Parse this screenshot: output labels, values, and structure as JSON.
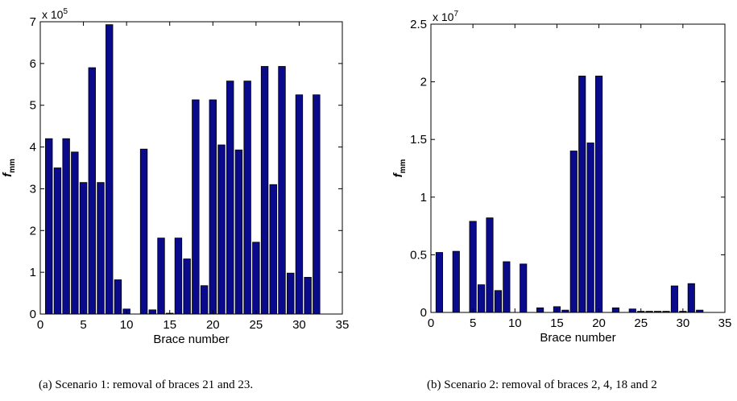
{
  "chart_data": [
    {
      "type": "bar",
      "caption": "(a) Scenario 1: removal of braces 21 and 23.",
      "xlabel": "Brace number",
      "ylabel_main": "f",
      "ylabel_sub": "mm",
      "exponent_base": "x 10",
      "exponent_power": "5",
      "xlim": [
        0,
        35
      ],
      "ylim": [
        0,
        7
      ],
      "xticks": [
        0,
        5,
        10,
        15,
        20,
        25,
        30,
        35
      ],
      "yticks": [
        0,
        1,
        2,
        3,
        4,
        5,
        6,
        7
      ],
      "x": [
        1,
        2,
        3,
        4,
        5,
        6,
        7,
        8,
        9,
        10,
        11,
        12,
        13,
        14,
        15,
        16,
        17,
        18,
        19,
        20,
        21,
        22,
        23,
        24,
        25,
        26,
        27,
        28,
        29,
        30,
        31,
        32
      ],
      "values": [
        4.2,
        3.5,
        4.2,
        3.88,
        3.15,
        5.9,
        3.15,
        6.93,
        0.82,
        0.12,
        0,
        3.95,
        0.1,
        1.82,
        0.02,
        1.82,
        1.32,
        5.13,
        0.68,
        5.13,
        4.05,
        5.58,
        3.93,
        5.58,
        1.72,
        5.93,
        3.1,
        5.93,
        0.98,
        5.25,
        0.88,
        5.25
      ],
      "bar_color": "#0a0a8c",
      "grid": false
    },
    {
      "type": "bar",
      "caption": "(b) Scenario 2: removal of braces 2, 4, 18 and 2",
      "xlabel": "Brace number",
      "ylabel_main": "f",
      "ylabel_sub": "mm",
      "exponent_base": "x 10",
      "exponent_power": "7",
      "xlim": [
        0,
        35
      ],
      "ylim": [
        0,
        2.5
      ],
      "xticks": [
        0,
        5,
        10,
        15,
        20,
        25,
        30,
        35
      ],
      "yticks": [
        0,
        0.5,
        1,
        1.5,
        2,
        2.5
      ],
      "x": [
        1,
        2,
        3,
        4,
        5,
        6,
        7,
        8,
        9,
        10,
        11,
        12,
        13,
        14,
        15,
        16,
        17,
        18,
        19,
        20,
        21,
        22,
        23,
        24,
        25,
        26,
        27,
        28,
        29,
        30,
        31,
        32
      ],
      "values": [
        0.52,
        0,
        0.53,
        0,
        0.79,
        0.24,
        0.82,
        0.19,
        0.44,
        0,
        0.42,
        0,
        0.04,
        0,
        0.05,
        0.02,
        1.4,
        2.05,
        1.47,
        2.05,
        0,
        0.04,
        0,
        0.03,
        0.01,
        0.01,
        0.01,
        0.01,
        0.23,
        0.01,
        0.25,
        0.02
      ],
      "bar_color": "#0a0a8c",
      "grid": false
    }
  ]
}
